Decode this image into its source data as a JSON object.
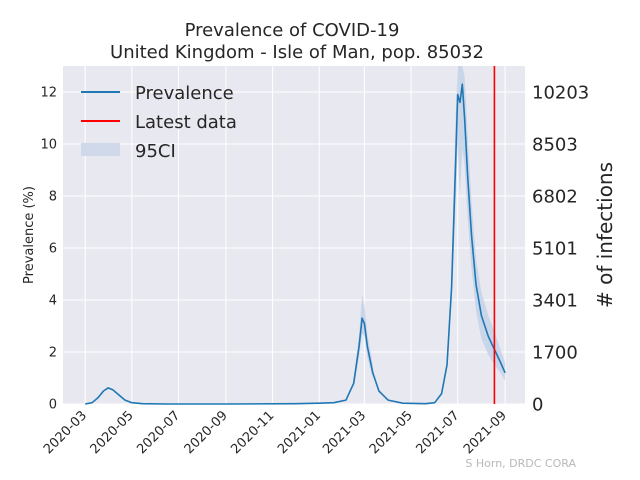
{
  "chart_data": {
    "type": "line",
    "title": "Prevalence of COVID-19",
    "subtitle": "United Kingdom - Isle of Man, pop. 85032",
    "ylabel": "Prevalence (%)",
    "ylabel_right": "# of infections",
    "ylim": [
      0,
      13
    ],
    "yticks": [
      0,
      2,
      4,
      6,
      8,
      10,
      12
    ],
    "yticks_right": [
      "0",
      "1700",
      "3401",
      "5101",
      "6802",
      "8503",
      "10203"
    ],
    "xticks": [
      "2020-03",
      "2020-05",
      "2020-07",
      "2020-09",
      "2020-11",
      "2021-01",
      "2021-03",
      "2021-05",
      "2021-07",
      "2021-09"
    ],
    "latest_data_date": "2021-08-18",
    "colors": {
      "line": "#1f77b4",
      "latest": "#ff0000",
      "ci": "#bfcfe6",
      "plot_bg": "#e8e8f0",
      "grid": "#ffffff"
    },
    "series": [
      {
        "name": "Prevalence",
        "points": [
          [
            "2020-03-01",
            0.0
          ],
          [
            "2020-03-10",
            0.05
          ],
          [
            "2020-03-18",
            0.25
          ],
          [
            "2020-03-25",
            0.5
          ],
          [
            "2020-03-31",
            0.62
          ],
          [
            "2020-04-06",
            0.55
          ],
          [
            "2020-04-14",
            0.35
          ],
          [
            "2020-04-22",
            0.15
          ],
          [
            "2020-05-01",
            0.05
          ],
          [
            "2020-05-15",
            0.01
          ],
          [
            "2020-06-15",
            0.0
          ],
          [
            "2020-09-01",
            0.0
          ],
          [
            "2020-12-01",
            0.01
          ],
          [
            "2021-01-01",
            0.03
          ],
          [
            "2021-01-20",
            0.05
          ],
          [
            "2021-02-05",
            0.15
          ],
          [
            "2021-02-15",
            0.8
          ],
          [
            "2021-02-22",
            2.2
          ],
          [
            "2021-02-26",
            3.3
          ],
          [
            "2021-03-01",
            3.1
          ],
          [
            "2021-03-05",
            2.2
          ],
          [
            "2021-03-12",
            1.2
          ],
          [
            "2021-03-20",
            0.5
          ],
          [
            "2021-04-01",
            0.15
          ],
          [
            "2021-04-20",
            0.03
          ],
          [
            "2021-05-20",
            0.01
          ],
          [
            "2021-06-01",
            0.05
          ],
          [
            "2021-06-10",
            0.4
          ],
          [
            "2021-06-17",
            1.5
          ],
          [
            "2021-06-23",
            4.5
          ],
          [
            "2021-06-28",
            9.0
          ],
          [
            "2021-07-01",
            11.9
          ],
          [
            "2021-07-04",
            11.6
          ],
          [
            "2021-07-07",
            12.3
          ],
          [
            "2021-07-10",
            11.0
          ],
          [
            "2021-07-14",
            8.8
          ],
          [
            "2021-07-19",
            6.5
          ],
          [
            "2021-07-25",
            4.6
          ],
          [
            "2021-08-01",
            3.4
          ],
          [
            "2021-08-10",
            2.6
          ],
          [
            "2021-08-18",
            2.1
          ],
          [
            "2021-08-26",
            1.6
          ],
          [
            "2021-09-01",
            1.2
          ]
        ]
      },
      {
        "name": "Latest data"
      },
      {
        "name": "95CI",
        "upper": [
          [
            "2021-02-15",
            1.0
          ],
          [
            "2021-02-22",
            2.6
          ],
          [
            "2021-02-26",
            4.2
          ],
          [
            "2021-03-01",
            3.8
          ],
          [
            "2021-03-05",
            2.7
          ],
          [
            "2021-03-12",
            1.5
          ],
          [
            "2021-06-23",
            5.4
          ],
          [
            "2021-06-28",
            10.8
          ],
          [
            "2021-07-01",
            13.0
          ],
          [
            "2021-07-04",
            13.0
          ],
          [
            "2021-07-07",
            13.0
          ],
          [
            "2021-07-10",
            12.6
          ],
          [
            "2021-07-14",
            10.4
          ],
          [
            "2021-07-19",
            7.8
          ],
          [
            "2021-07-25",
            5.6
          ],
          [
            "2021-08-01",
            4.3
          ],
          [
            "2021-08-10",
            3.4
          ],
          [
            "2021-08-18",
            2.8
          ],
          [
            "2021-08-26",
            2.1
          ],
          [
            "2021-09-01",
            1.6
          ]
        ],
        "lower": [
          [
            "2021-02-15",
            0.6
          ],
          [
            "2021-02-22",
            1.8
          ],
          [
            "2021-02-26",
            2.7
          ],
          [
            "2021-03-01",
            2.6
          ],
          [
            "2021-03-05",
            1.8
          ],
          [
            "2021-03-12",
            0.95
          ],
          [
            "2021-06-23",
            3.7
          ],
          [
            "2021-06-28",
            7.4
          ],
          [
            "2021-07-01",
            10.0
          ],
          [
            "2021-07-04",
            8.0
          ],
          [
            "2021-07-07",
            9.8
          ],
          [
            "2021-07-10",
            9.2
          ],
          [
            "2021-07-14",
            7.2
          ],
          [
            "2021-07-19",
            5.2
          ],
          [
            "2021-07-25",
            3.6
          ],
          [
            "2021-08-01",
            2.5
          ],
          [
            "2021-08-10",
            1.9
          ],
          [
            "2021-08-18",
            1.5
          ],
          [
            "2021-08-26",
            1.2
          ],
          [
            "2021-09-01",
            0.9
          ]
        ]
      }
    ],
    "legend": {
      "position": "top-left",
      "items": [
        "Prevalence",
        "Latest data",
        "95CI"
      ]
    },
    "credit": "S Horn, DRDC CORA"
  }
}
